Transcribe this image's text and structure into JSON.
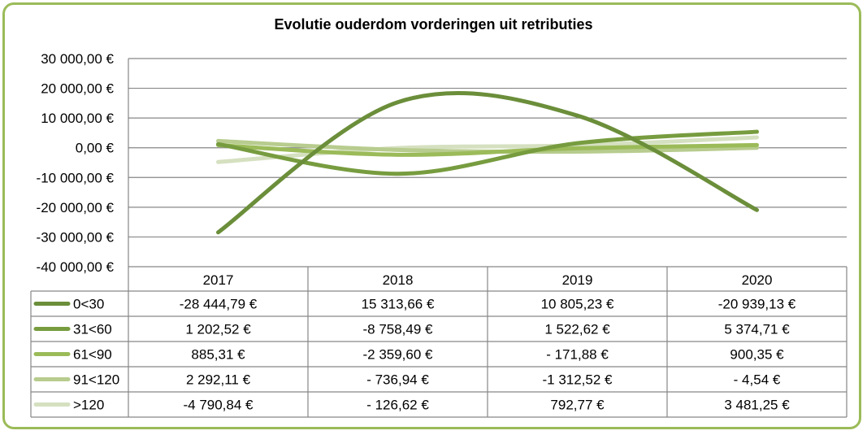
{
  "chart_data": {
    "type": "line",
    "title": "Evolutie ouderdom vorderingen uit retributies",
    "categories": [
      "2017",
      "2018",
      "2019",
      "2020"
    ],
    "ylim": [
      -40000,
      30000
    ],
    "ytick_values": [
      30000,
      20000,
      10000,
      0,
      -10000,
      -20000,
      -30000,
      -40000
    ],
    "ytick_labels": [
      "30 000,00 €",
      "20 000,00 €",
      "10 000,00 €",
      "0,00 €",
      "-10 000,00 €",
      "-20 000,00 €",
      "-30 000,00 €",
      "-40 000,00 €"
    ],
    "grid": true,
    "smoothed": true,
    "legend": "data-table",
    "series": [
      {
        "name": "0<30",
        "color": "#6b8e3a",
        "values": [
          -28444.79,
          15313.66,
          10805.23,
          -20939.13
        ],
        "labels": [
          "-28 444,79 €",
          "15 313,66 €",
          "10 805,23 €",
          "-20 939,13 €"
        ]
      },
      {
        "name": "31<60",
        "color": "#779c3f",
        "values": [
          1202.52,
          -8758.49,
          1522.62,
          5374.71
        ],
        "labels": [
          "1 202,52 €",
          "-8 758,49 €",
          "1 522,62 €",
          "5 374,71 €"
        ]
      },
      {
        "name": "61<90",
        "color": "#9bbb59",
        "values": [
          885.31,
          -2359.6,
          -171.88,
          900.35
        ],
        "labels": [
          "885,31 €",
          "-2 359,60 €",
          "- 171,88 €",
          "900,35 €"
        ]
      },
      {
        "name": "91<120",
        "color": "#b7cc8e",
        "values": [
          2292.11,
          -736.94,
          -1312.52,
          -4.54
        ],
        "labels": [
          "2 292,11 €",
          "- 736,94 €",
          "-1 312,52 €",
          "- 4,54 €"
        ]
      },
      {
        "name": ">120",
        "color": "#d5e0c0",
        "values": [
          -4790.84,
          -126.62,
          792.77,
          3481.25
        ],
        "labels": [
          "-4 790,84 €",
          "- 126,62 €",
          "792,77 €",
          "3 481,25 €"
        ]
      }
    ]
  }
}
